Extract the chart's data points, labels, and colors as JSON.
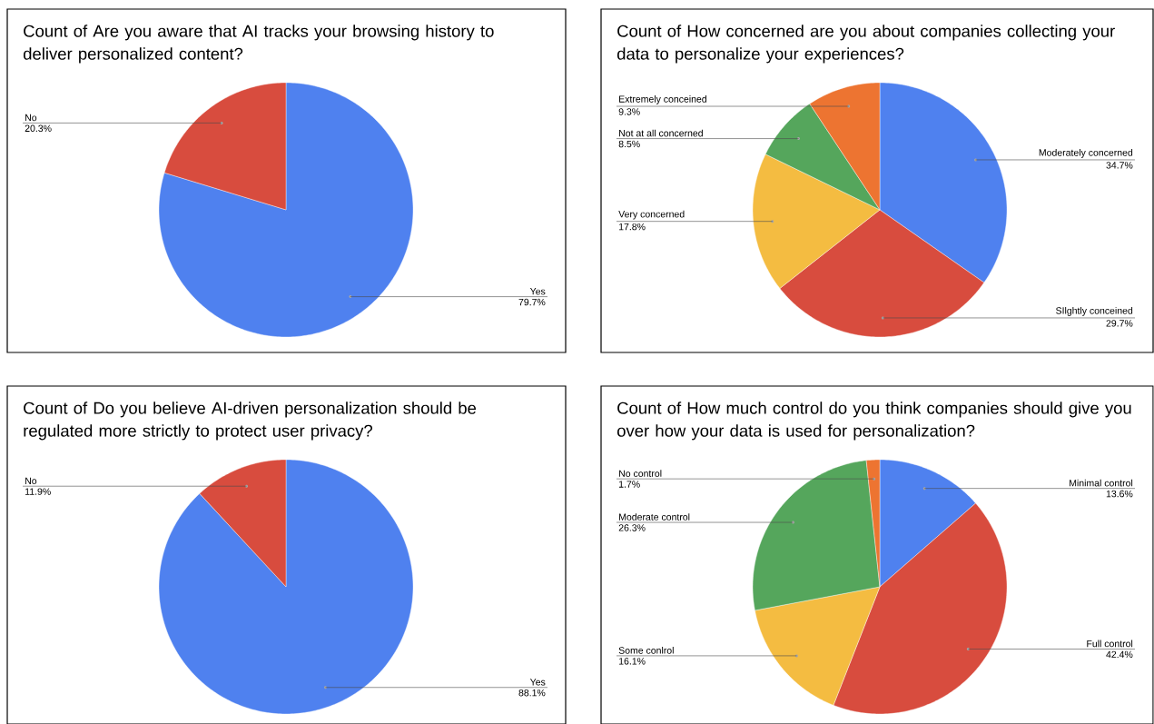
{
  "chart_data": [
    {
      "type": "pie",
      "title": "Count of Are you aware that AI tracks your browsing history to deliver personalized content?",
      "categories": [
        "Yes",
        "No"
      ],
      "values": [
        79.7,
        20.3
      ],
      "colors": [
        "#4f81ef",
        "#d84c3e"
      ],
      "value_labels": [
        "79.7%",
        "20.3%"
      ]
    },
    {
      "type": "pie",
      "title": "Count of How concerned are you about companies collecting your data to personalize your experiences?",
      "categories": [
        "Moderately concerned",
        "SIlghtly conceined",
        "Very concerned",
        "Not at all concerned",
        "Extremely conceined"
      ],
      "values": [
        34.7,
        29.7,
        17.8,
        8.5,
        9.3
      ],
      "colors": [
        "#4f81ef",
        "#d84c3e",
        "#f4bc41",
        "#55a65c",
        "#ed7431"
      ],
      "value_labels": [
        "34.7%",
        "29.7%",
        "17.8%",
        "8.5%",
        "9.3%"
      ]
    },
    {
      "type": "pie",
      "title": "Count of Do you believe AI-driven personalization should be regulated more strictly to protect user privacy?",
      "categories": [
        "Yes",
        "No"
      ],
      "values": [
        88.1,
        11.9
      ],
      "colors": [
        "#4f81ef",
        "#d84c3e"
      ],
      "value_labels": [
        "88.1%",
        "11.9%"
      ]
    },
    {
      "type": "pie",
      "title": "Count of How much control do you think companies should give you over how your data is used for personalization?",
      "categories": [
        "Minimal control",
        "Full control",
        "Some conlrol",
        "Moderate control",
        "No control"
      ],
      "values": [
        13.6,
        42.4,
        16.1,
        26.3,
        1.7
      ],
      "colors": [
        "#4f81ef",
        "#d84c3e",
        "#f4bc41",
        "#55a65c",
        "#ed7431"
      ],
      "value_labels": [
        "13.6%",
        "42.4%",
        "16.1%",
        "26.3%",
        "1.7%"
      ]
    }
  ]
}
